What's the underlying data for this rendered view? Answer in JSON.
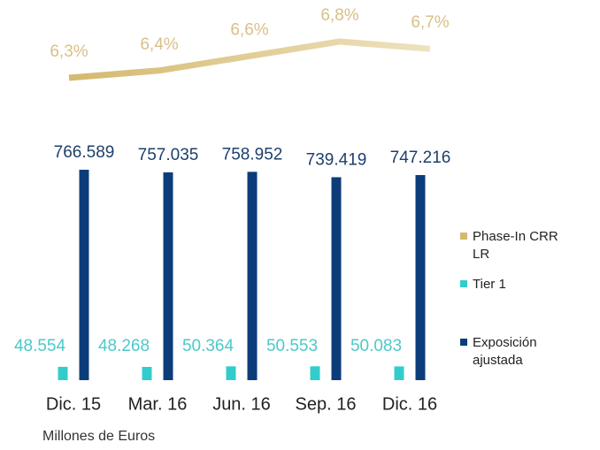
{
  "chart_data": {
    "type": "bar",
    "categories": [
      "Dic. 15",
      "Mar. 16",
      "Jun. 16",
      "Sep. 16",
      "Dic. 16"
    ],
    "series": [
      {
        "name": "Phase-In CRR LR",
        "type": "line",
        "color": "#d4b96e",
        "color_end": "#eee2bf",
        "values": [
          6.3,
          6.4,
          6.6,
          6.8,
          6.7
        ],
        "value_labels": [
          "6,3%",
          "6,4%",
          "6,6%",
          "6,8%",
          "6,7%"
        ]
      },
      {
        "name": "Tier 1",
        "color": "#33cccc",
        "label_color": "#4cc9c9",
        "values": [
          48554,
          48268,
          50364,
          50553,
          50083
        ],
        "value_labels": [
          "48.554",
          "48.268",
          "50.364",
          "50.553",
          "50.083"
        ]
      },
      {
        "name": "Exposición ajustada",
        "color": "#0c3d7a",
        "label_color": "#1e3f6c",
        "values": [
          766589,
          757035,
          758952,
          739419,
          747216
        ],
        "value_labels": [
          "766.589",
          "757.035",
          "758.952",
          "739.419",
          "747.216"
        ]
      }
    ],
    "note": "Millones de Euros"
  }
}
